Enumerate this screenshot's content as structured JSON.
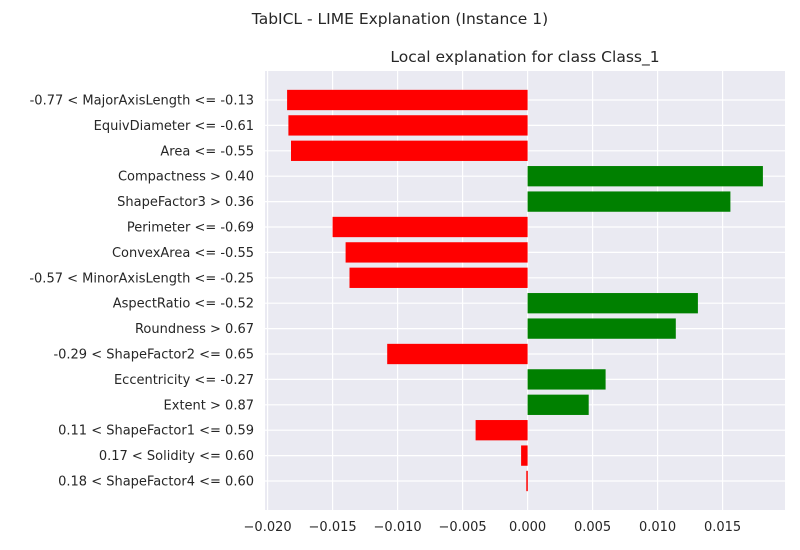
{
  "figure": {
    "suptitle": "TabICL - LIME Explanation (Instance 1)"
  },
  "chart_data": {
    "type": "bar",
    "orientation": "horizontal",
    "title": "Local explanation for class Class_1",
    "xlabel": "",
    "ylabel": "",
    "xlim": [
      -0.0202,
      0.0198
    ],
    "xticks": [
      -0.02,
      -0.015,
      -0.01,
      -0.005,
      0.0,
      0.005,
      0.01,
      0.015
    ],
    "xtick_labels": [
      "−0.020",
      "−0.015",
      "−0.010",
      "−0.005",
      "0.000",
      "0.005",
      "0.010",
      "0.015"
    ],
    "grid": true,
    "categories": [
      "-0.77 < MajorAxisLength <= -0.13",
      "EquivDiameter <= -0.61",
      "Area <= -0.55",
      "Compactness > 0.40",
      "ShapeFactor3 > 0.36",
      "Perimeter <= -0.69",
      "ConvexArea <= -0.55",
      "-0.57 < MinorAxisLength <= -0.25",
      "AspectRatio <= -0.52",
      "Roundness > 0.67",
      "-0.29 < ShapeFactor2 <= 0.65",
      "Eccentricity <= -0.27",
      "Extent > 0.87",
      "0.11 < ShapeFactor1 <= 0.59",
      "0.17 < Solidity <= 0.60",
      "0.18 < ShapeFactor4 <= 0.60"
    ],
    "values": [
      -0.0185,
      -0.0184,
      -0.0182,
      0.0181,
      0.0156,
      -0.015,
      -0.014,
      -0.0137,
      0.0131,
      0.0114,
      -0.0108,
      0.006,
      0.0047,
      -0.004,
      -0.0005,
      -0.0001
    ],
    "colors": {
      "positive": "#008000",
      "negative": "#ff0000",
      "background": "#eaeaf2",
      "grid": "#ffffff"
    }
  }
}
